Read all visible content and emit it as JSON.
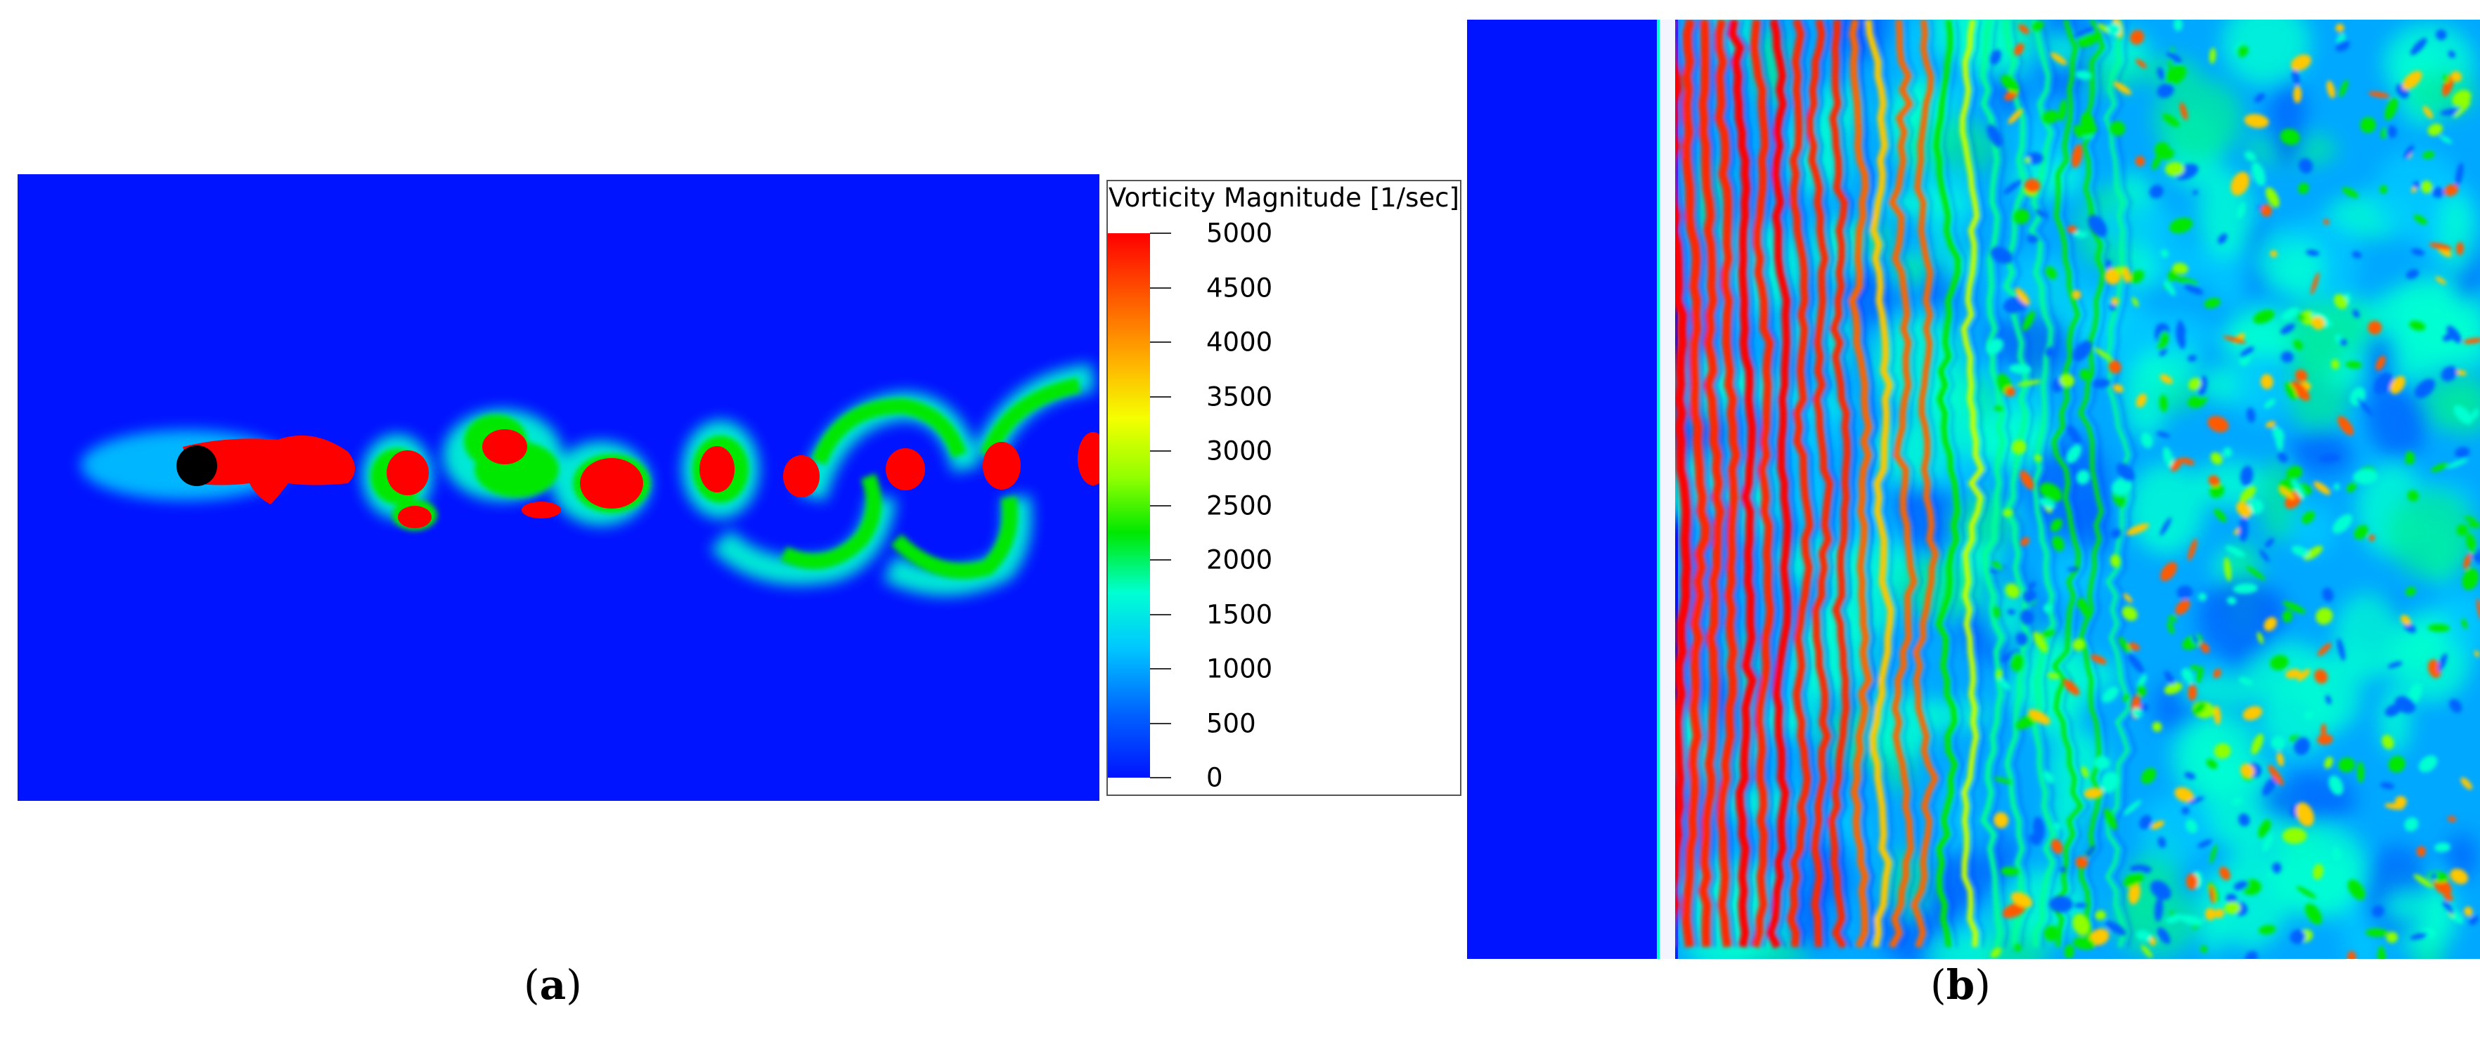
{
  "figure": {
    "panel_a_label": "a",
    "panel_b_label": "b",
    "label_open": "(",
    "label_close": ")"
  },
  "legend": {
    "title": "Vorticity Magnitude [1/sec]",
    "ticks": [
      "5000",
      "4500",
      "4000",
      "3500",
      "3000",
      "2500",
      "2000",
      "1500",
      "1000",
      "500",
      "0"
    ],
    "range": [
      0,
      5000
    ]
  },
  "colors": {
    "background_field": "#0014ff",
    "high": "#ff0000",
    "mid": "#00e800",
    "low_mid": "#00ffd2",
    "cylinder": "#000000"
  }
}
